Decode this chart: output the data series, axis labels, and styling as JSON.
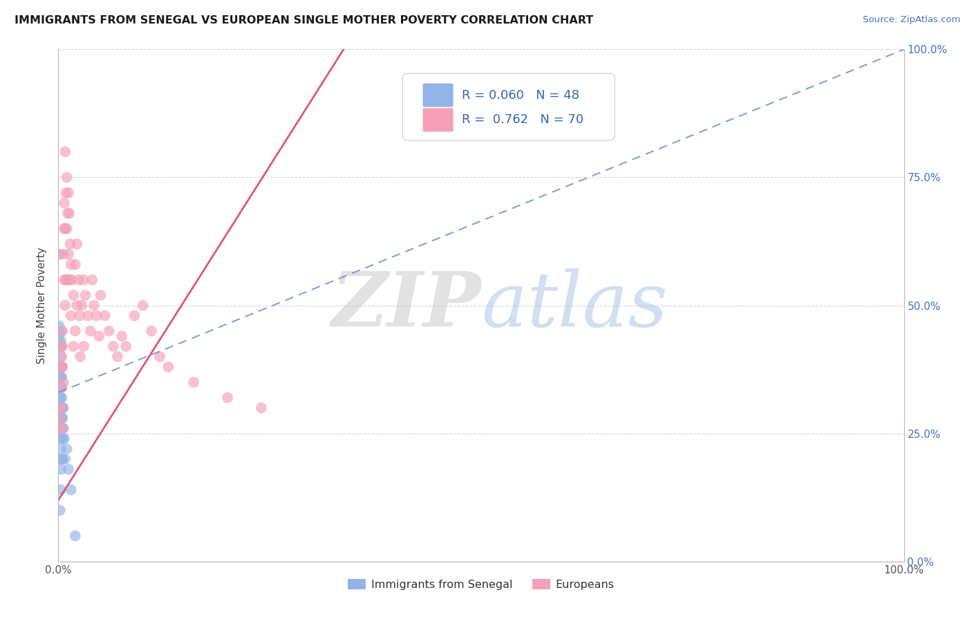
{
  "title": "IMMIGRANTS FROM SENEGAL VS EUROPEAN SINGLE MOTHER POVERTY CORRELATION CHART",
  "source": "Source: ZipAtlas.com",
  "ylabel": "Single Mother Poverty",
  "legend_label_blue": "Immigrants from Senegal",
  "legend_label_pink": "Europeans",
  "r_blue": 0.06,
  "n_blue": 48,
  "r_pink": 0.762,
  "n_pink": 70,
  "blue_color": "#92b4e8",
  "pink_color": "#f4a0b8",
  "blue_line_color": "#7090cc",
  "pink_line_color": "#e05870",
  "blue_x": [
    0.001,
    0.001,
    0.001,
    0.001,
    0.001,
    0.002,
    0.002,
    0.002,
    0.002,
    0.002,
    0.002,
    0.003,
    0.003,
    0.003,
    0.003,
    0.003,
    0.003,
    0.003,
    0.003,
    0.003,
    0.003,
    0.003,
    0.003,
    0.003,
    0.003,
    0.003,
    0.003,
    0.004,
    0.004,
    0.004,
    0.004,
    0.004,
    0.004,
    0.004,
    0.004,
    0.004,
    0.005,
    0.005,
    0.005,
    0.005,
    0.006,
    0.006,
    0.007,
    0.008,
    0.01,
    0.012,
    0.015,
    0.02
  ],
  "blue_y": [
    0.6,
    0.46,
    0.44,
    0.42,
    0.32,
    0.38,
    0.36,
    0.3,
    0.28,
    0.26,
    0.1,
    0.45,
    0.43,
    0.42,
    0.4,
    0.38,
    0.36,
    0.34,
    0.32,
    0.3,
    0.28,
    0.26,
    0.24,
    0.22,
    0.2,
    0.18,
    0.14,
    0.38,
    0.36,
    0.34,
    0.32,
    0.3,
    0.28,
    0.26,
    0.24,
    0.2,
    0.3,
    0.28,
    0.24,
    0.2,
    0.3,
    0.26,
    0.24,
    0.2,
    0.22,
    0.18,
    0.14,
    0.05
  ],
  "pink_x": [
    0.001,
    0.002,
    0.003,
    0.003,
    0.003,
    0.004,
    0.004,
    0.004,
    0.004,
    0.005,
    0.005,
    0.005,
    0.005,
    0.006,
    0.006,
    0.007,
    0.007,
    0.007,
    0.008,
    0.008,
    0.008,
    0.009,
    0.009,
    0.01,
    0.01,
    0.01,
    0.011,
    0.011,
    0.012,
    0.012,
    0.013,
    0.013,
    0.014,
    0.015,
    0.015,
    0.016,
    0.018,
    0.018,
    0.02,
    0.02,
    0.022,
    0.022,
    0.024,
    0.025,
    0.026,
    0.028,
    0.03,
    0.03,
    0.032,
    0.035,
    0.038,
    0.04,
    0.042,
    0.045,
    0.048,
    0.05,
    0.055,
    0.06,
    0.065,
    0.07,
    0.075,
    0.08,
    0.09,
    0.1,
    0.11,
    0.12,
    0.13,
    0.16,
    0.2,
    0.24
  ],
  "pink_y": [
    0.3,
    0.28,
    0.42,
    0.38,
    0.26,
    0.4,
    0.38,
    0.34,
    0.3,
    0.45,
    0.42,
    0.38,
    0.26,
    0.6,
    0.35,
    0.7,
    0.65,
    0.55,
    0.8,
    0.65,
    0.5,
    0.72,
    0.55,
    0.75,
    0.65,
    0.55,
    0.68,
    0.55,
    0.72,
    0.6,
    0.68,
    0.55,
    0.62,
    0.58,
    0.48,
    0.55,
    0.52,
    0.42,
    0.58,
    0.45,
    0.62,
    0.5,
    0.55,
    0.48,
    0.4,
    0.5,
    0.55,
    0.42,
    0.52,
    0.48,
    0.45,
    0.55,
    0.5,
    0.48,
    0.44,
    0.52,
    0.48,
    0.45,
    0.42,
    0.4,
    0.44,
    0.42,
    0.48,
    0.5,
    0.45,
    0.4,
    0.38,
    0.35,
    0.32,
    0.3
  ],
  "xlim": [
    0.0,
    1.0
  ],
  "ylim": [
    0.0,
    1.0
  ],
  "yticks": [
    0.0,
    0.25,
    0.5,
    0.75,
    1.0
  ],
  "ytick_labels": [
    "0.0%",
    "25.0%",
    "50.0%",
    "75.0%",
    "100.0%"
  ],
  "xtick_labels": [
    "0.0%",
    "100.0%"
  ],
  "grid_color": "#cccccc",
  "background_color": "#ffffff"
}
